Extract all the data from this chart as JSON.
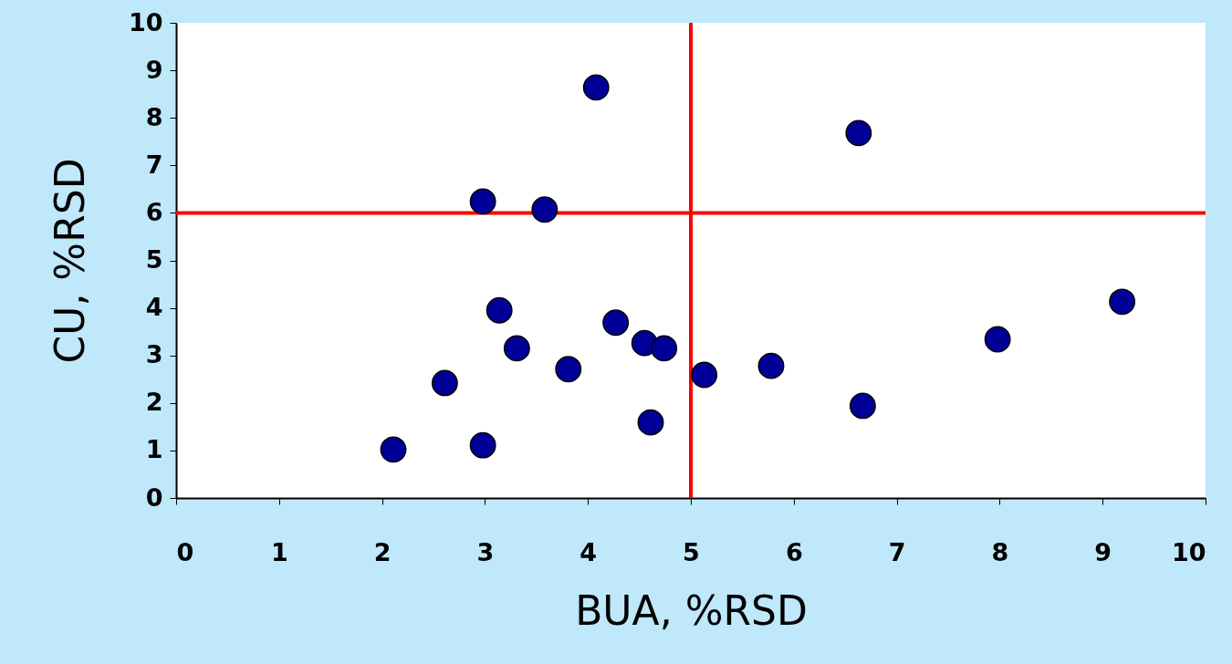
{
  "chart_data": {
    "type": "scatter",
    "xlabel": "BUA, %RSD",
    "ylabel": "CU, %RSD",
    "x": [
      2.11,
      2.61,
      2.98,
      2.98,
      3.14,
      3.31,
      3.58,
      3.81,
      4.08,
      4.27,
      4.55,
      4.74,
      4.61,
      5.13,
      5.78,
      6.63,
      6.67,
      7.98,
      9.19
    ],
    "series": [
      {
        "color": "#000099",
        "values": [
          1.02,
          2.42,
          1.11,
          6.24,
          3.95,
          3.15,
          6.07,
          2.71,
          8.64,
          3.69,
          3.26,
          3.15,
          1.59,
          2.59,
          2.78,
          7.68,
          1.94,
          3.34,
          4.13
        ]
      }
    ],
    "marker": "circle",
    "xlim": [
      0,
      10
    ],
    "ylim": [
      0,
      10
    ],
    "xticks": [
      0,
      1,
      2,
      3,
      4,
      5,
      6,
      7,
      8,
      9,
      10
    ],
    "yticks": [
      0,
      1,
      2,
      3,
      4,
      5,
      6,
      7,
      8,
      9,
      10
    ],
    "ref_lines": [
      {
        "axis": "x",
        "value": 5,
        "color": "#ff0000"
      },
      {
        "axis": "y",
        "value": 6,
        "color": "#ff0000"
      }
    ]
  }
}
